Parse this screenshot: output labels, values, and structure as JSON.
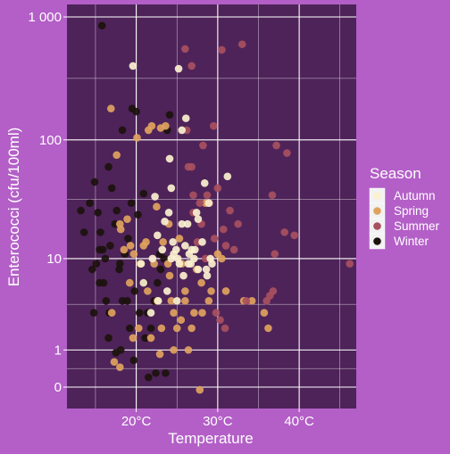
{
  "chart_data": {
    "type": "scatter",
    "xlabel": "Temperature",
    "ylabel": "Enterococci (cfu/100ml)",
    "x_unit": "°C",
    "y_scale": "log1p",
    "xlim": [
      11.5,
      47.0
    ],
    "x_ticks": [
      20,
      30,
      40
    ],
    "x_tick_labels": [
      "20°C",
      "30°C",
      "40°C"
    ],
    "y_ticks": [
      0,
      1,
      10,
      100,
      1000
    ],
    "y_tick_labels": [
      "0",
      "1",
      "10",
      "100",
      "1 000"
    ],
    "grid": true,
    "legend_position": "right",
    "legend": {
      "title": "Season",
      "entries": [
        "Autumn",
        "Spring",
        "Summer",
        "Winter"
      ]
    },
    "colors": {
      "panel": "#4e2359",
      "background": "#b35fc7",
      "grid": "#ffffff",
      "text": "#ffffff",
      "Autumn": "#fbf1cf",
      "Spring": "#e0a35e",
      "Summer": "#a8505f",
      "Winter": "#1c120d"
    },
    "series": [
      {
        "name": "Autumn",
        "points": [
          [
            19.6,
            400
          ],
          [
            22.3,
            34
          ],
          [
            22.6,
            16
          ],
          [
            24.3,
            40
          ],
          [
            24.3,
            10
          ],
          [
            24.5,
            14
          ],
          [
            25.2,
            380
          ],
          [
            25.6,
            20
          ],
          [
            26.1,
            150
          ],
          [
            26.3,
            20
          ],
          [
            26.5,
            11
          ],
          [
            26.8,
            12
          ],
          [
            27.1,
            10
          ],
          [
            27.4,
            25
          ],
          [
            27.6,
            8
          ],
          [
            28.1,
            14
          ],
          [
            28.4,
            44
          ],
          [
            28.9,
            30
          ],
          [
            29.1,
            10
          ],
          [
            31.2,
            50
          ],
          [
            23.2,
            12
          ],
          [
            24.0,
            25
          ],
          [
            25.3,
            9
          ],
          [
            25.8,
            7
          ],
          [
            25.1,
            10
          ],
          [
            22.0,
            10
          ],
          [
            26.0,
            13
          ],
          [
            26.7,
            9
          ],
          [
            27.6,
            22
          ],
          [
            28.6,
            8
          ],
          [
            23.5,
            21
          ],
          [
            24.9,
            12
          ],
          [
            25.6,
            120
          ],
          [
            24.1,
            70
          ],
          [
            23.8,
            5
          ],
          [
            25.0,
            4
          ],
          [
            20.9,
            6
          ],
          [
            20.6,
            9
          ],
          [
            22.7,
            4
          ],
          [
            21.8,
            3
          ],
          [
            26.4,
            9
          ],
          [
            27.2,
            12
          ],
          [
            28.7,
            7
          ],
          [
            29.3,
            9
          ],
          [
            24.6,
            11
          ]
        ]
      },
      {
        "name": "Spring",
        "points": [
          [
            16.9,
            180
          ],
          [
            17.6,
            75
          ],
          [
            18.1,
            18
          ],
          [
            18.5,
            12
          ],
          [
            18.9,
            22
          ],
          [
            19.3,
            13
          ],
          [
            19.7,
            11
          ],
          [
            20.1,
            104
          ],
          [
            20.5,
            9
          ],
          [
            20.9,
            13
          ],
          [
            21.2,
            14
          ],
          [
            21.5,
            120
          ],
          [
            21.9,
            130
          ],
          [
            22.2,
            9
          ],
          [
            22.5,
            28
          ],
          [
            23.0,
            125
          ],
          [
            23.3,
            14
          ],
          [
            23.6,
            130
          ],
          [
            23.9,
            9
          ],
          [
            24.1,
            7
          ],
          [
            24.3,
            4
          ],
          [
            24.6,
            3
          ],
          [
            25.0,
            2
          ],
          [
            25.3,
            15
          ],
          [
            25.6,
            9
          ],
          [
            26.0,
            4
          ],
          [
            26.4,
            1
          ],
          [
            26.8,
            2
          ],
          [
            27.1,
            3
          ],
          [
            27.4,
            8
          ],
          [
            27.8,
            -0.05
          ],
          [
            28.1,
            3
          ],
          [
            28.5,
            30
          ],
          [
            28.9,
            4
          ],
          [
            29.2,
            5
          ],
          [
            30.0,
            11
          ],
          [
            30.5,
            10
          ],
          [
            31.0,
            5
          ],
          [
            33.2,
            4
          ],
          [
            34.2,
            4
          ],
          [
            35.7,
            3
          ],
          [
            36.2,
            2
          ],
          [
            17.3,
            0.6
          ],
          [
            18.0,
            0.45
          ],
          [
            19.6,
            1.5
          ],
          [
            21.8,
            1.5
          ],
          [
            22.9,
            0.85
          ],
          [
            20.3,
            2
          ],
          [
            17.0,
            3
          ],
          [
            21.4,
            5
          ],
          [
            23.1,
            2
          ],
          [
            24.6,
            1
          ],
          [
            25.5,
            2.5
          ],
          [
            22.6,
            4
          ],
          [
            19.2,
            6
          ],
          [
            18.0,
            20
          ],
          [
            24.0,
            20
          ],
          [
            26.0,
            5
          ],
          [
            28.0,
            6
          ]
        ]
      },
      {
        "name": "Summer",
        "points": [
          [
            26.0,
            550
          ],
          [
            27.0,
            35
          ],
          [
            27.5,
            14
          ],
          [
            28.0,
            20
          ],
          [
            28.5,
            10
          ],
          [
            29.0,
            30
          ],
          [
            29.5,
            130
          ],
          [
            30.0,
            40
          ],
          [
            30.5,
            540
          ],
          [
            31.0,
            13
          ],
          [
            31.5,
            26
          ],
          [
            32.0,
            12
          ],
          [
            32.5,
            20
          ],
          [
            33.0,
            600
          ],
          [
            33.5,
            4
          ],
          [
            36.0,
            4
          ],
          [
            36.4,
            4.5
          ],
          [
            36.8,
            5
          ],
          [
            37.0,
            11
          ],
          [
            37.2,
            90
          ],
          [
            38.5,
            78
          ],
          [
            38.2,
            17
          ],
          [
            39.4,
            16
          ],
          [
            46.2,
            9
          ],
          [
            36.7,
            35
          ],
          [
            28.2,
            90
          ],
          [
            27.0,
            25
          ],
          [
            26.8,
            60
          ],
          [
            29.8,
            3
          ],
          [
            30.9,
            2
          ],
          [
            30.3,
            2.5
          ],
          [
            26.2,
            120
          ],
          [
            26.8,
            400
          ],
          [
            27.8,
            30
          ],
          [
            26.4,
            60
          ],
          [
            28.7,
            35
          ],
          [
            29.6,
            15
          ],
          [
            30.7,
            18
          ]
        ]
      },
      {
        "name": "Winter",
        "points": [
          [
            15.8,
            850
          ],
          [
            13.2,
            26
          ],
          [
            13.6,
            17
          ],
          [
            14.3,
            30
          ],
          [
            14.9,
            45
          ],
          [
            15.3,
            25
          ],
          [
            15.6,
            17
          ],
          [
            16.0,
            6
          ],
          [
            16.3,
            4
          ],
          [
            16.7,
            3
          ],
          [
            17.0,
            40
          ],
          [
            17.4,
            20
          ],
          [
            17.9,
            8
          ],
          [
            18.3,
            4
          ],
          [
            18.6,
            11
          ],
          [
            19.0,
            15
          ],
          [
            19.4,
            30
          ],
          [
            19.8,
            5
          ],
          [
            20.2,
            24
          ],
          [
            20.6,
            9
          ],
          [
            21.0,
            6
          ],
          [
            21.4,
            3
          ],
          [
            21.8,
            2
          ],
          [
            22.2,
            4
          ],
          [
            22.6,
            6
          ],
          [
            23.0,
            8
          ],
          [
            23.4,
            10
          ],
          [
            23.8,
            120
          ],
          [
            24.1,
            160
          ],
          [
            22.4,
            0.3
          ],
          [
            23.6,
            0.3
          ],
          [
            21.5,
            0.2
          ],
          [
            20.0,
            170
          ],
          [
            19.5,
            180
          ],
          [
            18.3,
            120
          ],
          [
            19.7,
            0.65
          ],
          [
            16.6,
            1.5
          ],
          [
            17.5,
            0.9
          ],
          [
            18.1,
            1
          ],
          [
            14.6,
            8
          ],
          [
            15.1,
            9
          ],
          [
            15.9,
            12
          ],
          [
            14.8,
            3
          ],
          [
            15.5,
            6
          ],
          [
            16.2,
            10
          ],
          [
            16.8,
            13
          ],
          [
            17.6,
            26
          ],
          [
            18.9,
            4
          ],
          [
            19.2,
            2
          ],
          [
            20.4,
            3
          ],
          [
            21.1,
            1.5
          ],
          [
            22.9,
            11
          ],
          [
            20.9,
            36
          ],
          [
            18.0,
            9
          ],
          [
            15.5,
            12
          ],
          [
            16.6,
            60
          ]
        ]
      }
    ]
  }
}
